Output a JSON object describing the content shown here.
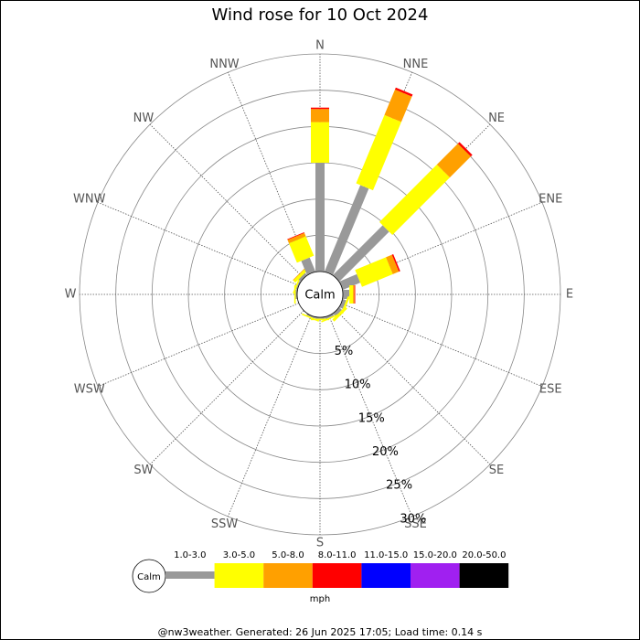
{
  "chart_data": {
    "type": "windrose",
    "title": "Wind rose for 10 Oct 2024",
    "directions": [
      "N",
      "NNE",
      "NE",
      "ENE",
      "E",
      "ESE",
      "SE",
      "SSE",
      "S",
      "SSW",
      "SW",
      "WSW",
      "W",
      "WNW",
      "NW",
      "NNW"
    ],
    "calm_label": "Calm",
    "legend_title": "mph",
    "footer": "@nw3weather. Generated: 26 Jun 2025 17:05; Load time: 0.14 s",
    "rlim": [
      0,
      30
    ],
    "rticks": [
      {
        "value": 5,
        "label": "5%"
      },
      {
        "value": 10,
        "label": "10%"
      },
      {
        "value": 15,
        "label": "15%"
      },
      {
        "value": 20,
        "label": "20%"
      },
      {
        "value": 25,
        "label": "25%"
      },
      {
        "value": 30,
        "label": "30%"
      }
    ],
    "series": [
      {
        "name": "1.0-3.0",
        "color": "#999999",
        "values": [
          15.0,
          12.9,
          9.7,
          2.6,
          0.9,
          0.5,
          0.5,
          0.3,
          0.2,
          0.2,
          0,
          0,
          0.2,
          0.2,
          0.4,
          2.1
        ]
      },
      {
        "name": "3.0-5.0",
        "color": "#ffff00",
        "values": [
          5.6,
          10.2,
          11.2,
          4.6,
          0.5,
          0.3,
          0.4,
          0.2,
          0.2,
          0.2,
          0,
          0,
          0.2,
          0.2,
          0.4,
          2.9
        ]
      },
      {
        "name": "5.0-8.0",
        "color": "#ffa000",
        "values": [
          1.8,
          3.8,
          4.1,
          0.9,
          0.2,
          0,
          0,
          0,
          0,
          0,
          0,
          0,
          0,
          0,
          0.1,
          0.5
        ]
      },
      {
        "name": "8.0-11.0",
        "color": "#ff0000",
        "values": [
          0.2,
          0.3,
          0.3,
          0.2,
          0.1,
          0,
          0,
          0,
          0,
          0,
          0,
          0,
          0,
          0,
          0,
          0.1
        ]
      },
      {
        "name": "11.0-15.0",
        "color": "#0000ff",
        "values": [
          0,
          0,
          0,
          0,
          0,
          0,
          0,
          0,
          0,
          0,
          0,
          0,
          0,
          0,
          0,
          0
        ]
      },
      {
        "name": "15.0-20.0",
        "color": "#a020f0",
        "values": [
          0,
          0,
          0,
          0,
          0,
          0,
          0,
          0,
          0,
          0,
          0,
          0,
          0,
          0,
          0,
          0
        ]
      },
      {
        "name": "20.0-50.0",
        "color": "#000000",
        "values": [
          0,
          0,
          0,
          0,
          0,
          0,
          0,
          0,
          0,
          0,
          0,
          0,
          0,
          0,
          0,
          0
        ]
      }
    ]
  }
}
